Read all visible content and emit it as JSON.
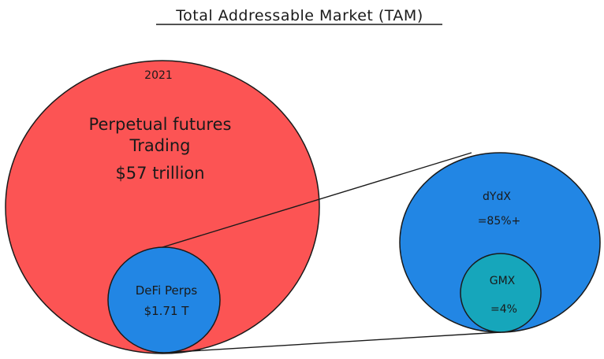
{
  "title": "Total Addressable Market (TAM)",
  "colors": {
    "perpetual_circle": "#fc5454",
    "defi_circle": "#2286e4",
    "dydx_circle": "#2286e4",
    "gmx_circle": "#16a6bb",
    "stroke": "#1a1a1a"
  },
  "perpetual_futures": {
    "year": "2021",
    "line1": "Perpetual futures",
    "line2": "Trading",
    "amount": "$57 trillion"
  },
  "defi_perps": {
    "label": "DeFi Perps",
    "amount": "$1.71 T"
  },
  "dydx": {
    "label": "dYdX",
    "share": "=85%+"
  },
  "gmx": {
    "label": "GMX",
    "share": "=4%"
  }
}
